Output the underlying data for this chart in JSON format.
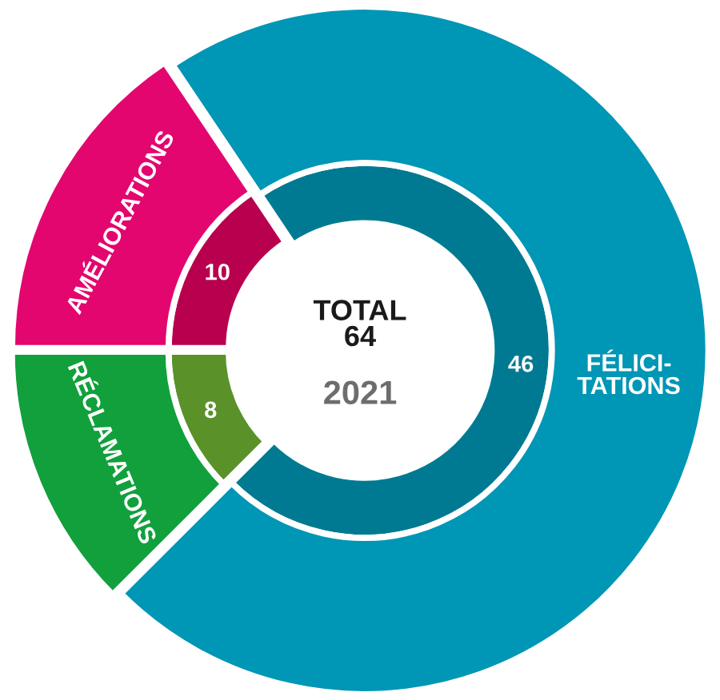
{
  "chart_data": {
    "type": "donut",
    "title": "TOTAL\n64",
    "subtitle": "2021",
    "categories": [
      "AMÉLIORATIONS",
      "FÉLICI-\nTATIONS",
      "RÉCLAMATIONS"
    ],
    "series": [
      {
        "values": [
          10,
          46,
          8
        ],
        "colors": [
          "#b9004f",
          "#007a92",
          "#5a9229"
        ],
        "data_labels": true
      },
      {
        "values": [
          15.6,
          71.9,
          12.5
        ],
        "colors": [
          "#e3066f",
          "#0096b5",
          "#11a03c"
        ]
      }
    ]
  }
}
